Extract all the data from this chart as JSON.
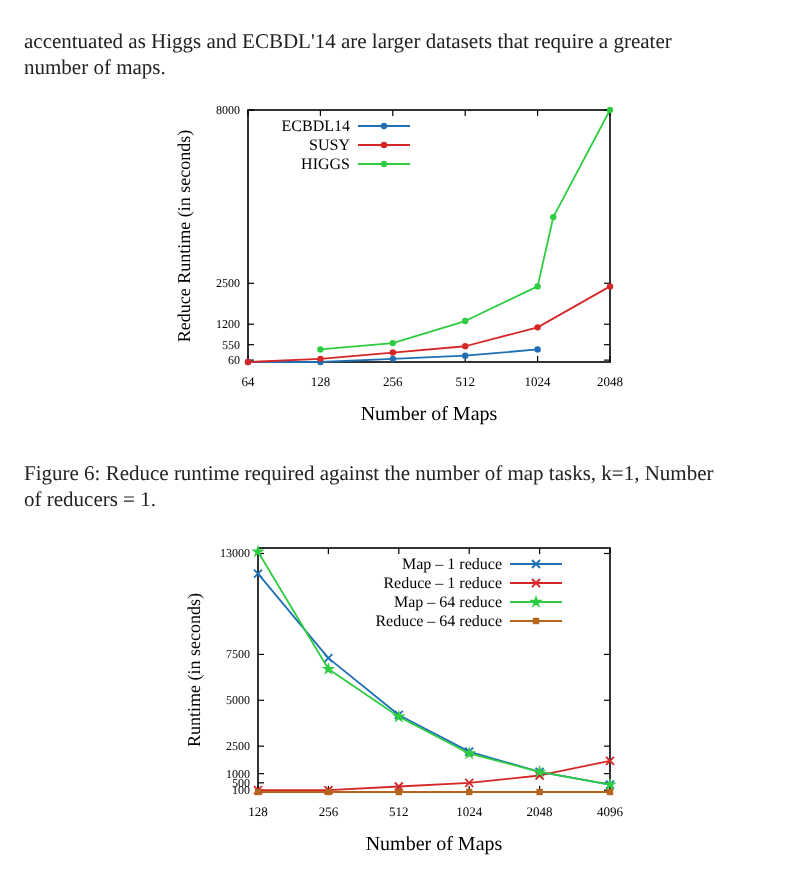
{
  "chart_data": [
    {
      "type": "line",
      "xlabel": "Number of Maps",
      "ylabel": "Reduce Runtime (in seconds)",
      "log": "x",
      "xlim": [
        64,
        2048
      ],
      "xticks": [
        64,
        128,
        256,
        512,
        1024,
        2048
      ],
      "ylim": [
        0,
        8000
      ],
      "yticks": [
        60,
        550,
        1200,
        2500,
        8000
      ],
      "legend": "top left",
      "marker": "circle",
      "annotations": [
        "accentuated as Higgs and ECBDL'14 are larger datasets that require a greater number of maps.",
        "Figure 6: Reduce runtime required against the number of map tasks, k=1, Number of reducers = 1."
      ],
      "series": [
        {
          "name": "ECBDL14",
          "color": "#1f6fb4",
          "x": [
            64,
            128,
            256,
            512,
            1024
          ],
          "values": [
            0,
            0,
            100,
            200,
            400
          ]
        },
        {
          "name": "SUSY",
          "color": "#d62728",
          "x": [
            64,
            128,
            256,
            512,
            1024,
            2048
          ],
          "values": [
            0,
            100,
            300,
            500,
            1100,
            2400
          ]
        },
        {
          "name": "HIGGS",
          "color": "#2ecc40",
          "x": [
            128,
            256,
            512,
            1024,
            1190,
            2048
          ],
          "values": [
            400,
            600,
            1300,
            2400,
            4600,
            8000
          ]
        }
      ]
    },
    {
      "type": "line",
      "xlabel": "Number of Maps",
      "ylabel": "Runtime (in seconds)",
      "log": "x",
      "xlim": [
        128,
        4096
      ],
      "xticks": [
        128,
        256,
        512,
        1024,
        2048,
        4096
      ],
      "ylim": [
        0,
        13300
      ],
      "yticks": [
        100,
        500,
        1000,
        2500,
        5000,
        7500,
        13000
      ],
      "legend": "top right",
      "x": [
        128,
        256,
        512,
        1024,
        2048,
        4096
      ],
      "series": [
        {
          "name": "Map – 1 reduce",
          "color": "#1f6fb4",
          "marker": "cross",
          "values": [
            11900,
            7300,
            4200,
            2200,
            1100,
            400
          ]
        },
        {
          "name": "Reduce – 1 reduce",
          "color": "#d62728",
          "marker": "cross",
          "values": [
            100,
            100,
            300,
            500,
            900,
            1700
          ]
        },
        {
          "name": "Map – 64 reduce",
          "color": "#2ecc40",
          "marker": "star",
          "values": [
            13100,
            6700,
            4100,
            2100,
            1100,
            400
          ]
        },
        {
          "name": "Reduce – 64 reduce",
          "color": "#b5651d",
          "marker": "square",
          "values": [
            0,
            0,
            0,
            0,
            0,
            0
          ]
        }
      ]
    }
  ]
}
